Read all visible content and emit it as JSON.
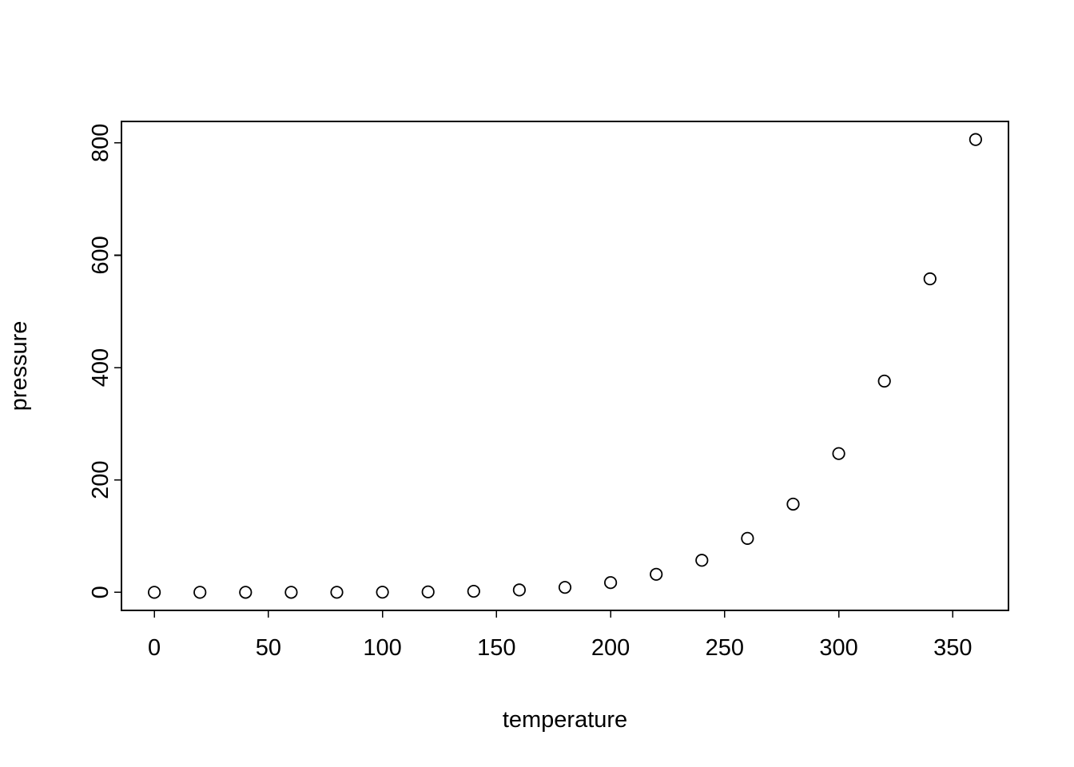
{
  "chart_data": {
    "type": "scatter",
    "title": "",
    "xlabel": "temperature",
    "ylabel": "pressure",
    "x": [
      0,
      20,
      40,
      60,
      80,
      100,
      120,
      140,
      160,
      180,
      200,
      220,
      240,
      260,
      280,
      300,
      320,
      340,
      360
    ],
    "y": [
      0.0002,
      0.0012,
      0.006,
      0.03,
      0.09,
      0.27,
      0.75,
      1.85,
      4.2,
      8.8,
      17.3,
      32.1,
      57,
      96,
      157,
      247,
      376,
      558,
      806
    ],
    "xticks": [
      0,
      50,
      100,
      150,
      200,
      250,
      300,
      350
    ],
    "yticks": [
      0,
      200,
      400,
      600,
      800
    ],
    "xlim": [
      -14.4,
      374.4
    ],
    "ylim": [
      -32.2,
      838.2
    ],
    "grid": false,
    "legend": null,
    "marker": "open-circle",
    "colors": {
      "point_stroke": "#000000",
      "axis": "#000000",
      "background": "#ffffff"
    }
  }
}
